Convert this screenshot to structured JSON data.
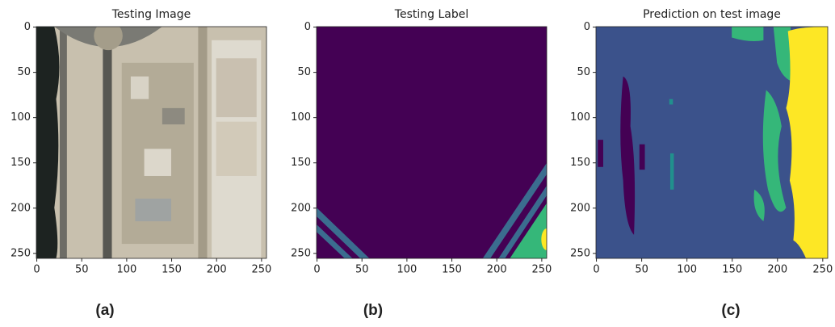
{
  "chart_data": [
    {
      "type": "image",
      "title": "Testing Image",
      "caption": "(a)",
      "xlim": [
        -0.5,
        255.5
      ],
      "ylim": [
        255.5,
        -0.5
      ],
      "xticks": [
        0,
        50,
        100,
        150,
        200,
        250
      ],
      "yticks": [
        0,
        50,
        100,
        150,
        200,
        250
      ]
    },
    {
      "type": "image",
      "title": "Testing Label",
      "caption": "(b)",
      "xlim": [
        -0.5,
        255.5
      ],
      "ylim": [
        255.5,
        -0.5
      ],
      "xticks": [
        0,
        50,
        100,
        150,
        200,
        250
      ],
      "yticks": [
        0,
        50,
        100,
        150,
        200,
        250
      ]
    },
    {
      "type": "image",
      "title": "Prediction on test image",
      "caption": "(c)",
      "xlim": [
        -0.5,
        255.5
      ],
      "ylim": [
        255.5,
        -0.5
      ],
      "xticks": [
        0,
        50,
        100,
        150,
        200,
        250
      ],
      "yticks": [
        0,
        50,
        100,
        150,
        200,
        250
      ]
    }
  ]
}
